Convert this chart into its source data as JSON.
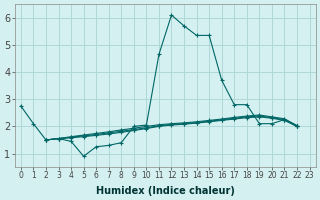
{
  "xlabel": "Humidex (Indice chaleur)",
  "background_color": "#d4f0f0",
  "grid_color": "#b0d8d8",
  "line_color": "#006666",
  "yticks": [
    1,
    2,
    3,
    4,
    5,
    6
  ],
  "xticks": [
    0,
    1,
    2,
    3,
    4,
    5,
    6,
    7,
    8,
    9,
    10,
    11,
    12,
    13,
    14,
    15,
    16,
    17,
    18,
    19,
    20,
    21,
    22,
    23
  ],
  "main_x": [
    0,
    1,
    2,
    3,
    4,
    5,
    6,
    7,
    8,
    9,
    10,
    11,
    12,
    13,
    14,
    15,
    16,
    17,
    18,
    19,
    20,
    21,
    22
  ],
  "main_y": [
    2.75,
    2.1,
    1.5,
    1.55,
    1.45,
    0.9,
    1.25,
    1.3,
    1.4,
    2.0,
    2.05,
    4.65,
    6.1,
    5.7,
    5.35,
    5.35,
    3.7,
    2.8,
    2.8,
    2.1,
    2.1,
    2.25,
    2.0
  ],
  "flat_x": [
    2,
    3,
    4,
    5,
    6,
    7,
    8,
    9,
    10,
    11,
    12,
    13,
    14,
    15,
    16,
    17,
    18,
    19,
    20,
    21,
    22
  ],
  "flat1_y": [
    1.5,
    1.55,
    1.58,
    1.62,
    1.67,
    1.72,
    1.78,
    1.85,
    1.92,
    2.0,
    2.05,
    2.08,
    2.12,
    2.17,
    2.22,
    2.27,
    2.32,
    2.35,
    2.3,
    2.22,
    2.0
  ],
  "flat2_y": [
    1.5,
    1.55,
    1.6,
    1.65,
    1.7,
    1.76,
    1.82,
    1.88,
    1.95,
    2.02,
    2.07,
    2.1,
    2.14,
    2.19,
    2.24,
    2.3,
    2.35,
    2.38,
    2.32,
    2.25,
    2.02
  ],
  "flat3_y": [
    1.5,
    1.55,
    1.62,
    1.68,
    1.74,
    1.8,
    1.87,
    1.93,
    2.0,
    2.06,
    2.1,
    2.13,
    2.17,
    2.22,
    2.27,
    2.33,
    2.38,
    2.42,
    2.35,
    2.28,
    2.03
  ]
}
